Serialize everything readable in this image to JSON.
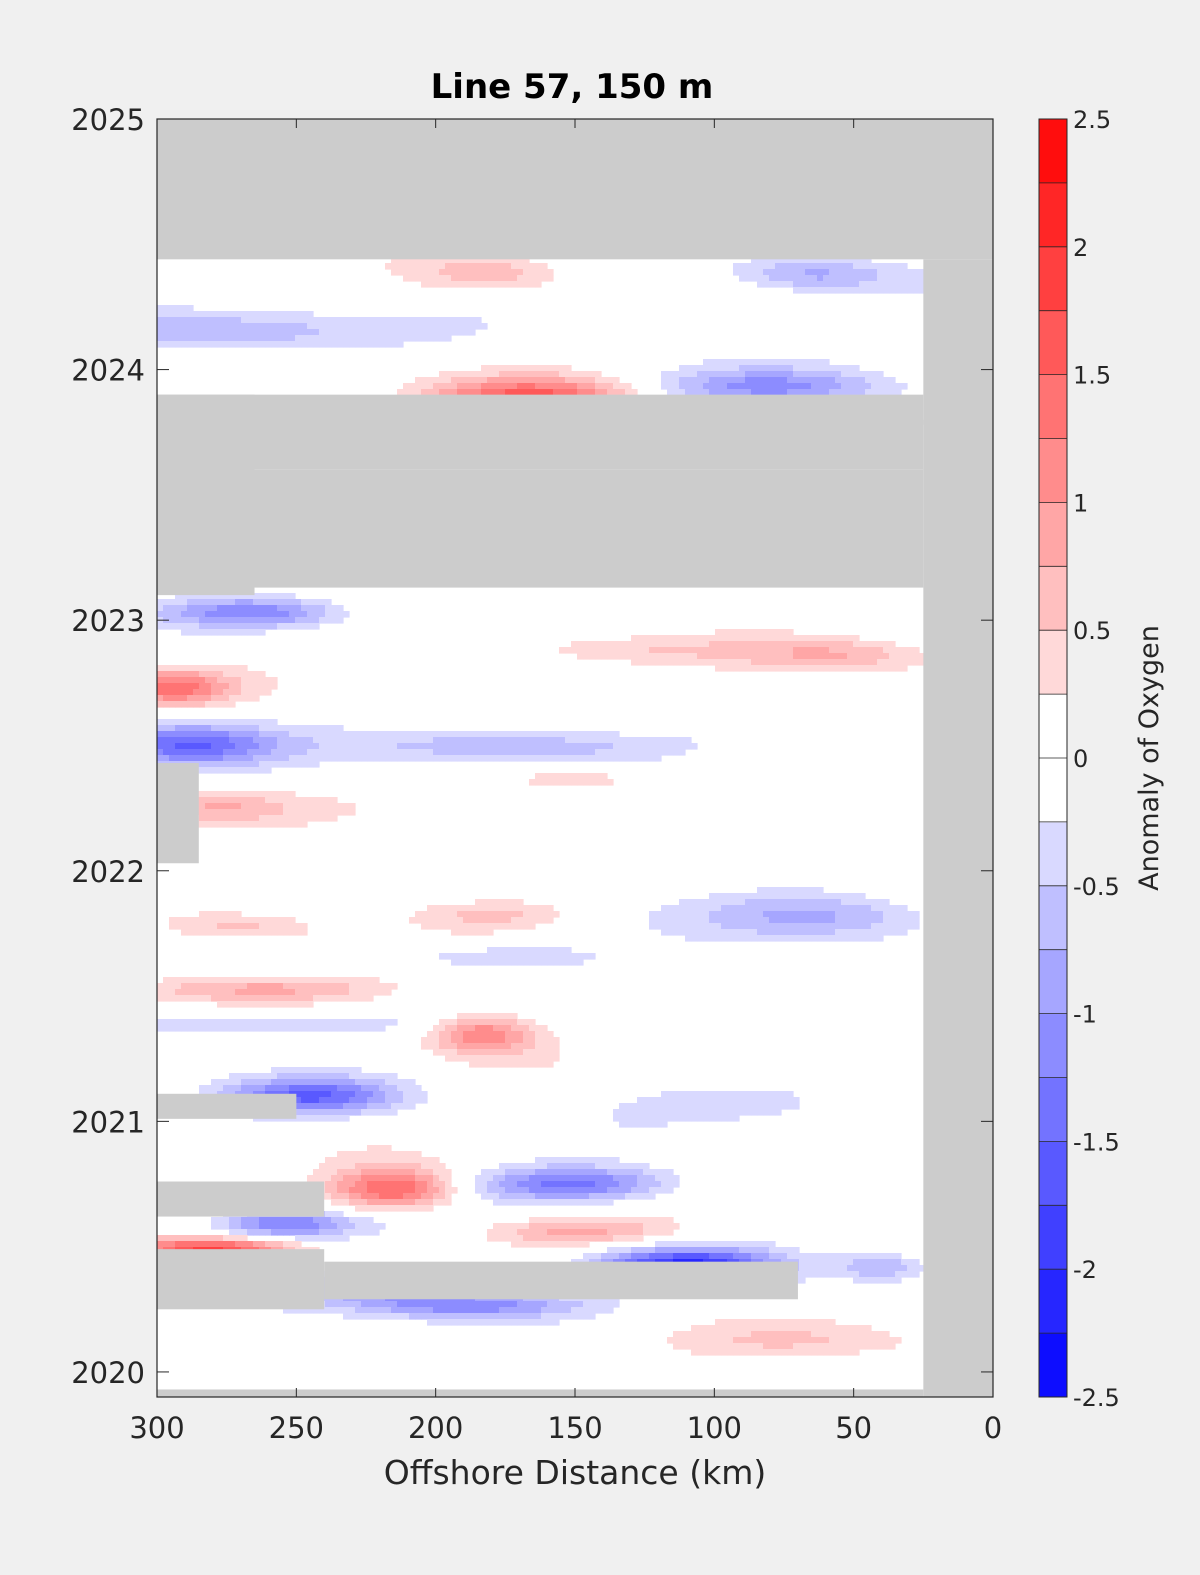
{
  "chart_data": {
    "type": "heatmap",
    "title": "Line 57, 150 m",
    "xlabel": "Offshore Distance (km)",
    "ylabel": "",
    "x_reversed": true,
    "xlim": [
      300,
      0
    ],
    "ylim": [
      2019.9,
      2025
    ],
    "x_ticks": [
      300,
      250,
      200,
      150,
      100,
      50,
      0
    ],
    "y_ticks": [
      2020,
      2021,
      2022,
      2023,
      2024,
      2025
    ],
    "colorbar": {
      "label": "Anomaly of Oxygen",
      "range": [
        -2.5,
        2.5
      ],
      "ticks": [
        -2.5,
        -2,
        -1.5,
        -1,
        -0.5,
        0,
        0.5,
        1,
        1.5,
        2,
        2.5
      ],
      "tick_labels": [
        "-2.5",
        "-2",
        "-1.5",
        "-1",
        "-0.5",
        "0",
        "0.5",
        "1",
        "1.5",
        "2",
        "2.5"
      ],
      "levels": 20,
      "neutral_band": [
        -0.25,
        0.25
      ],
      "low_color": "#0000ff",
      "high_color": "#ff0000",
      "mid_color": "#ffffff"
    },
    "no_data_color": "#cccccc",
    "no_data_regions": [
      {
        "x": [
          300,
          0
        ],
        "y": [
          2024.44,
          2025
        ]
      },
      {
        "x": [
          25,
          0
        ],
        "y": [
          2019.9,
          2024.44
        ]
      },
      {
        "x": [
          300,
          25
        ],
        "y": [
          2019.9,
          2019.93
        ]
      },
      {
        "x": [
          300,
          25
        ],
        "y": [
          2023.6,
          2023.8
        ]
      },
      {
        "x": [
          300,
          265
        ],
        "y": [
          2023.1,
          2023.9
        ]
      },
      {
        "x": [
          300,
          25
        ],
        "y": [
          2023.13,
          2023.6
        ]
      },
      {
        "x": [
          300,
          25
        ],
        "y": [
          2023.78,
          2023.9
        ]
      },
      {
        "x": [
          300,
          285
        ],
        "y": [
          2022.03,
          2022.43
        ]
      },
      {
        "x": [
          300,
          250
        ],
        "y": [
          2021.01,
          2021.11
        ]
      },
      {
        "x": [
          300,
          240
        ],
        "y": [
          2020.62,
          2020.76
        ]
      },
      {
        "x": [
          300,
          240
        ],
        "y": [
          2020.25,
          2020.49
        ]
      },
      {
        "x": [
          240,
          70
        ],
        "y": [
          2020.29,
          2020.44
        ]
      }
    ],
    "anomalies": [
      {
        "x": 165,
        "y": 2023.88,
        "value": 1.6,
        "sx": 26,
        "sy": 0.06
      },
      {
        "x": 180,
        "y": 2024.38,
        "value": 0.6,
        "sx": 18,
        "sy": 0.05
      },
      {
        "x": 65,
        "y": 2024.38,
        "value": -0.8,
        "sx": 20,
        "sy": 0.05
      },
      {
        "x": 280,
        "y": 2024.15,
        "value": -0.9,
        "sx": 40,
        "sy": 0.06
      },
      {
        "x": 80,
        "y": 2023.93,
        "value": -1.0,
        "sx": 30,
        "sy": 0.05
      },
      {
        "x": 265,
        "y": 2023.03,
        "value": -1.1,
        "sx": 22,
        "sy": 0.04
      },
      {
        "x": 295,
        "y": 2022.73,
        "value": 1.3,
        "sx": 15,
        "sy": 0.05
      },
      {
        "x": 55,
        "y": 2022.86,
        "value": 0.7,
        "sx": 25,
        "sy": 0.05
      },
      {
        "x": 140,
        "y": 2022.88,
        "value": 0.4,
        "sx": 40,
        "sy": 0.04
      },
      {
        "x": 290,
        "y": 2022.5,
        "value": -1.5,
        "sx": 22,
        "sy": 0.06
      },
      {
        "x": 170,
        "y": 2022.5,
        "value": -0.8,
        "sx": 40,
        "sy": 0.05
      },
      {
        "x": 150,
        "y": 2022.36,
        "value": 0.6,
        "sx": 18,
        "sy": 0.04
      },
      {
        "x": 280,
        "y": 2022.25,
        "value": 0.8,
        "sx": 20,
        "sy": 0.05
      },
      {
        "x": 60,
        "y": 2021.82,
        "value": -0.8,
        "sx": 30,
        "sy": 0.07
      },
      {
        "x": 270,
        "y": 2021.77,
        "value": 0.6,
        "sx": 20,
        "sy": 0.04
      },
      {
        "x": 180,
        "y": 2021.83,
        "value": 0.5,
        "sx": 20,
        "sy": 0.04
      },
      {
        "x": 180,
        "y": 2021.66,
        "value": -0.5,
        "sx": 30,
        "sy": 0.04
      },
      {
        "x": 265,
        "y": 2021.53,
        "value": 0.8,
        "sx": 35,
        "sy": 0.04
      },
      {
        "x": 260,
        "y": 2021.39,
        "value": -0.6,
        "sx": 40,
        "sy": 0.04
      },
      {
        "x": 183,
        "y": 2021.35,
        "value": 1.3,
        "sx": 14,
        "sy": 0.06
      },
      {
        "x": 245,
        "y": 2021.1,
        "value": -1.4,
        "sx": 22,
        "sy": 0.05
      },
      {
        "x": 90,
        "y": 2021.07,
        "value": -0.5,
        "sx": 30,
        "sy": 0.05
      },
      {
        "x": 215,
        "y": 2020.73,
        "value": 1.6,
        "sx": 16,
        "sy": 0.06
      },
      {
        "x": 150,
        "y": 2020.75,
        "value": -1.4,
        "sx": 25,
        "sy": 0.05
      },
      {
        "x": 255,
        "y": 2020.59,
        "value": -1.3,
        "sx": 18,
        "sy": 0.04
      },
      {
        "x": 150,
        "y": 2020.56,
        "value": 0.8,
        "sx": 25,
        "sy": 0.04
      },
      {
        "x": 110,
        "y": 2020.42,
        "value": -2.0,
        "sx": 22,
        "sy": 0.05
      },
      {
        "x": 280,
        "y": 2020.49,
        "value": 1.7,
        "sx": 20,
        "sy": 0.03
      },
      {
        "x": 190,
        "y": 2020.27,
        "value": -1.3,
        "sx": 30,
        "sy": 0.04
      },
      {
        "x": 40,
        "y": 2020.42,
        "value": -0.8,
        "sx": 12,
        "sy": 0.04
      },
      {
        "x": 70,
        "y": 2020.12,
        "value": 0.4,
        "sx": 40,
        "sy": 0.05
      },
      {
        "x": 220,
        "y": 2020.35,
        "value": -1.0,
        "sx": 20,
        "sy": 0.04
      }
    ]
  }
}
